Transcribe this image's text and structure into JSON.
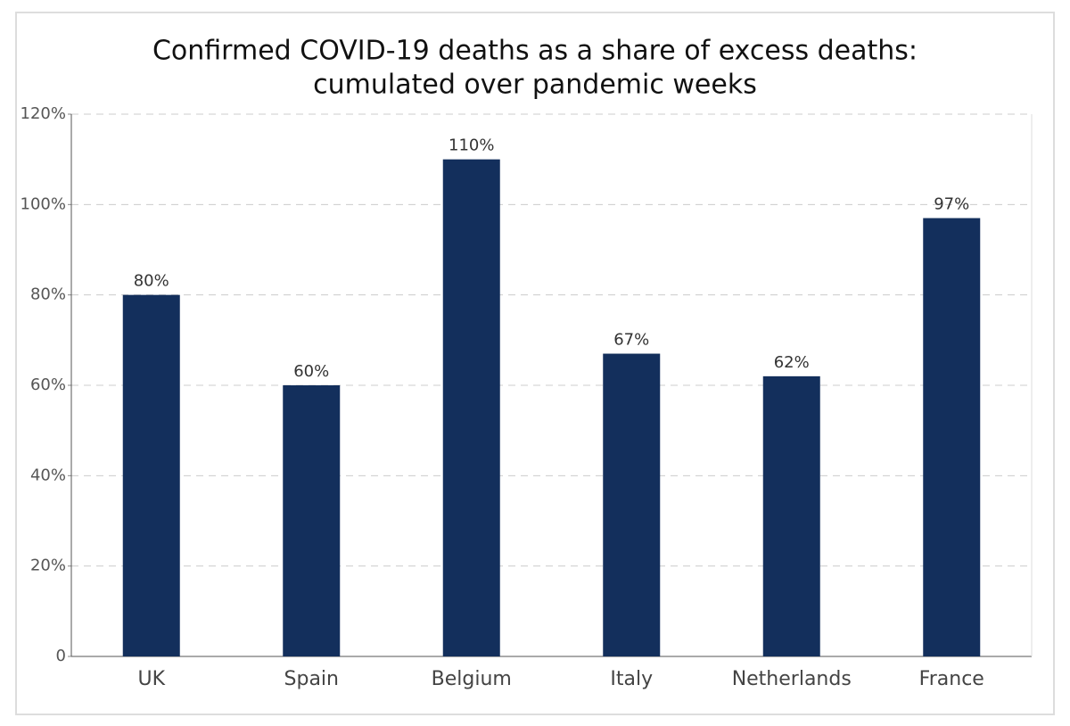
{
  "chart_data": {
    "type": "bar",
    "title": [
      "Confirmed COVID-19 deaths as a share of excess deaths:",
      "cumulated over pandemic weeks"
    ],
    "categories": [
      "UK",
      "Spain",
      "Belgium",
      "Italy",
      "Netherlands",
      "France"
    ],
    "values": [
      80,
      60,
      110,
      67,
      62,
      97
    ],
    "value_labels": [
      "80%",
      "60%",
      "110%",
      "67%",
      "62%",
      "97%"
    ],
    "color": "#132f5c",
    "ylim": [
      0,
      120
    ],
    "yticks": [
      0,
      {
        "value": 20,
        "label": "20%"
      },
      {
        "value": 40,
        "label": "40%"
      },
      {
        "value": 60,
        "label": "60%"
      },
      {
        "value": 80,
        "label": "80%"
      },
      {
        "value": 100,
        "label": "100%"
      },
      {
        "value": 120,
        "label": "120%"
      }
    ],
    "grid": true
  }
}
